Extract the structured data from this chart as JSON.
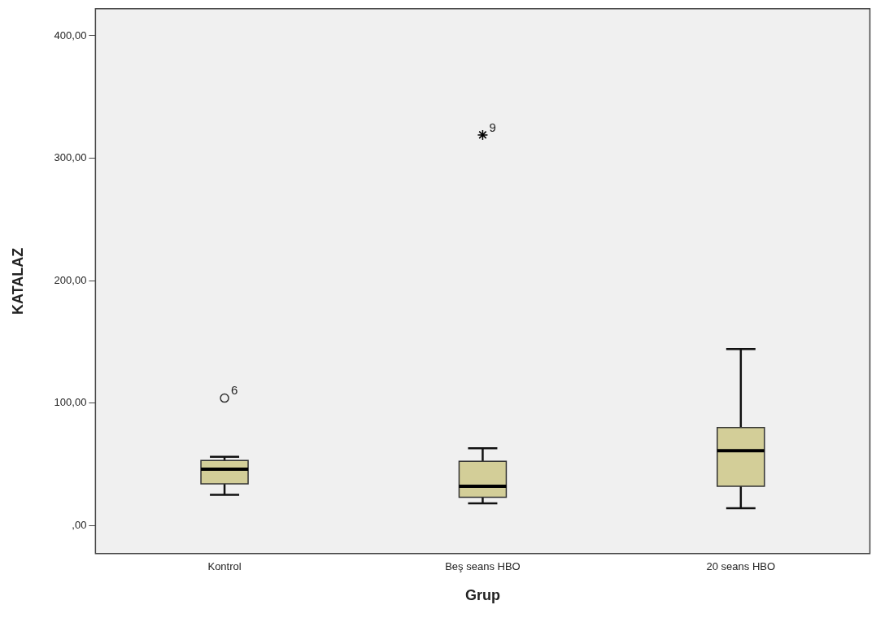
{
  "chart_data": {
    "type": "box",
    "xlabel": "Grup",
    "ylabel": "KATALAZ",
    "categories": [
      "Kontrol",
      "Beş seans HBO",
      "20 seans HBO"
    ],
    "series": [
      {
        "type": "box",
        "color": "#d3ce98",
        "boxes": [
          {
            "low": 25,
            "q1": 34,
            "median": 46,
            "q3": 53,
            "high": 56,
            "outliers": [
              104
            ]
          },
          {
            "low": 18,
            "q1": 23,
            "median": 32,
            "q3": 52.5,
            "high": 63
          },
          {
            "low": 14,
            "q1": 32,
            "median": 61,
            "q3": 80,
            "high": 144
          }
        ]
      },
      {
        "type": "scatter",
        "color": "#000000",
        "marker": "cross",
        "x": [
          "Beş seans HBO"
        ],
        "values": [
          319
        ]
      }
    ],
    "ylim": [
      -23,
      422
    ],
    "yticks": [
      {
        "value": 0,
        "label": ",00"
      },
      {
        "value": 100,
        "label": "100,00"
      },
      {
        "value": 200,
        "label": "200,00"
      },
      {
        "value": 300,
        "label": "300,00"
      },
      {
        "value": 400,
        "label": "400,00"
      }
    ],
    "annotations": [
      "6",
      "9"
    ],
    "grid": false,
    "legend": false
  }
}
